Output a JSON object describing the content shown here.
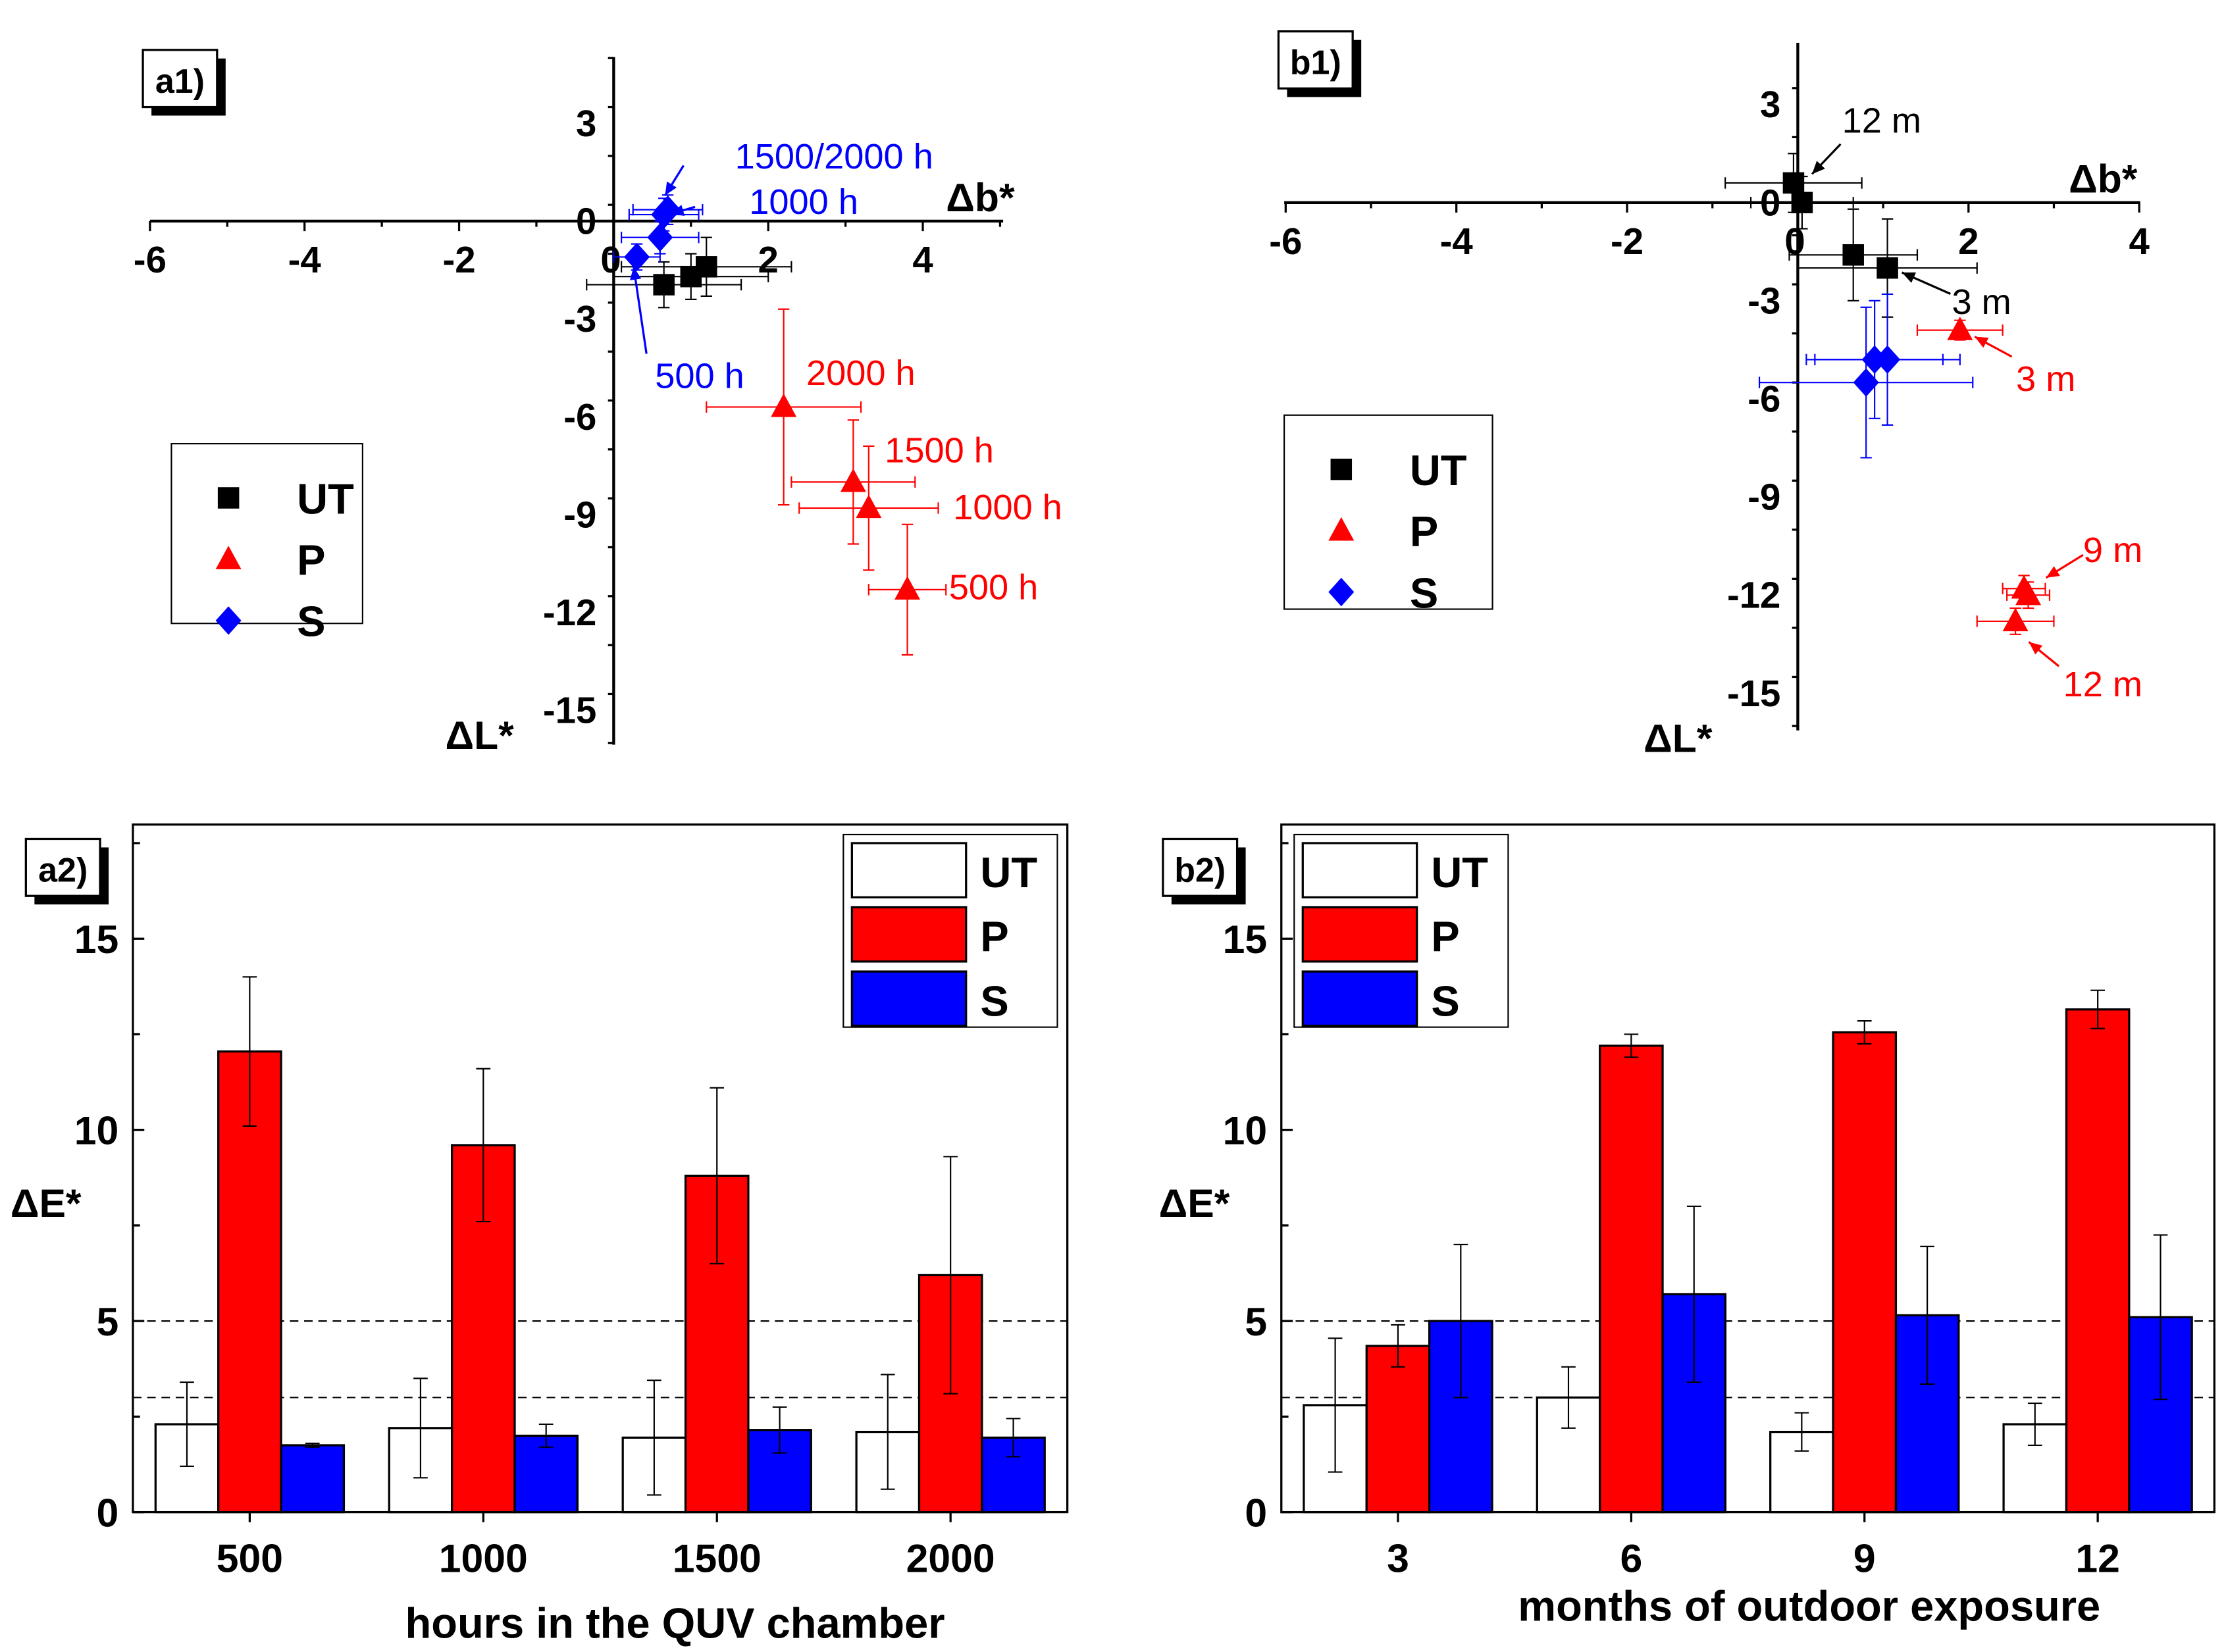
{
  "colors": {
    "UT": "#000000",
    "P": "#ff0000",
    "S": "#0000ff",
    "UT_bar_fill": "#ffffff"
  },
  "chart_data": [
    {
      "panel": "a1)",
      "type": "scatter",
      "xlabel": "Δb*",
      "ylabel": "ΔL*",
      "xlim": [
        -6,
        5
      ],
      "ylim": [
        -16,
        5
      ],
      "xticks": [
        -6,
        -4,
        -2,
        0,
        2,
        4
      ],
      "yticks": [
        3,
        0,
        -3,
        -6,
        -9,
        -12,
        -15
      ],
      "legend": [
        "UT",
        "P",
        "S"
      ],
      "legend_position": "left-middle",
      "series": [
        {
          "name": "UT",
          "marker": "square",
          "points": [
            {
              "x": 0.65,
              "y": -1.95,
              "xerr": 1.0,
              "yerr": 0.7
            },
            {
              "x": 1.0,
              "y": -1.7,
              "xerr": 1.0,
              "yerr": 0.7
            },
            {
              "x": 1.2,
              "y": -1.4,
              "xerr": 1.1,
              "yerr": 0.9
            }
          ]
        },
        {
          "name": "P",
          "marker": "triangle",
          "points": [
            {
              "x": 3.8,
              "y": -11.3,
              "xerr": 0.5,
              "yerr": 2.0
            },
            {
              "x": 3.3,
              "y": -8.8,
              "xerr": 0.9,
              "yerr": 1.9
            },
            {
              "x": 3.1,
              "y": -8.0,
              "xerr": 0.8,
              "yerr": 1.9
            },
            {
              "x": 2.2,
              "y": -5.7,
              "xerr": 1.0,
              "yerr": 3.0
            }
          ]
        },
        {
          "name": "S",
          "marker": "diamond",
          "points": [
            {
              "x": 0.3,
              "y": -1.1,
              "xerr": 0.3,
              "yerr": 0.4
            },
            {
              "x": 0.6,
              "y": -0.5,
              "xerr": 0.5,
              "yerr": 0.5
            },
            {
              "x": 0.65,
              "y": 0.2,
              "xerr": 0.45,
              "yerr": 0.5
            },
            {
              "x": 0.7,
              "y": 0.35,
              "xerr": 0.45,
              "yerr": 0.45
            }
          ]
        }
      ],
      "annotations": [
        {
          "text": "1500/2000 h",
          "color": "S"
        },
        {
          "text": "1000 h",
          "color": "S"
        },
        {
          "text": "500 h",
          "color": "S"
        },
        {
          "text": "2000 h",
          "color": "P"
        },
        {
          "text": "1500 h",
          "color": "P"
        },
        {
          "text": "1000 h",
          "color": "P"
        },
        {
          "text": "500 h",
          "color": "P"
        }
      ]
    },
    {
      "panel": "b1)",
      "type": "scatter",
      "xlabel": "Δb*",
      "ylabel": "ΔL*",
      "xlim": [
        -6,
        4
      ],
      "ylim": [
        -16,
        4
      ],
      "xticks": [
        -6,
        -4,
        -2,
        0,
        2,
        4
      ],
      "yticks": [
        3,
        0,
        -3,
        -6,
        -9,
        -12,
        -15
      ],
      "legend": [
        "UT",
        "P",
        "S"
      ],
      "legend_position": "left-middle",
      "series": [
        {
          "name": "UT",
          "marker": "square",
          "points": [
            {
              "x": -0.05,
              "y": 0.6,
              "xerr": 0.8,
              "yerr": 0.9
            },
            {
              "x": 0.05,
              "y": 0.0,
              "xerr": 0.6,
              "yerr": 0.8
            },
            {
              "x": 0.65,
              "y": -1.6,
              "xerr": 0.75,
              "yerr": 1.4
            },
            {
              "x": 1.05,
              "y": -2.0,
              "xerr": 1.05,
              "yerr": 1.5
            }
          ]
        },
        {
          "name": "P",
          "marker": "triangle",
          "points": [
            {
              "x": 1.9,
              "y": -3.9,
              "xerr": 0.5,
              "yerr": 0.3
            },
            {
              "x": 2.7,
              "y": -12.0,
              "xerr": 0.25,
              "yerr": 0.4
            },
            {
              "x": 2.65,
              "y": -11.8,
              "xerr": 0.25,
              "yerr": 0.4
            },
            {
              "x": 2.55,
              "y": -12.8,
              "xerr": 0.45,
              "yerr": 0.4
            }
          ]
        },
        {
          "name": "S",
          "marker": "diamond",
          "points": [
            {
              "x": 0.9,
              "y": -4.8,
              "xerr": 0.8,
              "yerr": 1.8
            },
            {
              "x": 1.05,
              "y": -4.8,
              "xerr": 0.85,
              "yerr": 2.0
            },
            {
              "x": 0.8,
              "y": -5.5,
              "xerr": 1.25,
              "yerr": 2.3
            }
          ]
        }
      ],
      "annotations": [
        {
          "text": "12 m",
          "color": "UT"
        },
        {
          "text": "3 m",
          "color": "UT"
        },
        {
          "text": "3 m",
          "color": "P"
        },
        {
          "text": "9 m",
          "color": "P"
        },
        {
          "text": "12 m",
          "color": "P"
        }
      ]
    },
    {
      "panel": "a2)",
      "type": "bar",
      "xlabel": "hours in the QUV chamber",
      "ylabel": "ΔE*",
      "ylim": [
        0,
        18
      ],
      "yticks": [
        0,
        5,
        10,
        15
      ],
      "reference_lines": [
        3,
        5
      ],
      "categories": [
        "500",
        "1000",
        "1500",
        "2000"
      ],
      "series": [
        {
          "name": "UT",
          "values": [
            2.3,
            2.2,
            1.95,
            2.1
          ],
          "errors": [
            1.1,
            1.3,
            1.5,
            1.5
          ]
        },
        {
          "name": "P",
          "values": [
            12.05,
            9.6,
            8.8,
            6.2
          ],
          "errors": [
            1.95,
            2.0,
            2.3,
            3.1
          ]
        },
        {
          "name": "S",
          "values": [
            1.75,
            2.0,
            2.15,
            1.95
          ],
          "errors": [
            0.05,
            0.3,
            0.6,
            0.5
          ]
        }
      ],
      "legend": [
        "UT",
        "P",
        "S"
      ],
      "legend_position": "top-right"
    },
    {
      "panel": "b2)",
      "type": "bar",
      "xlabel": "months of outdoor exposure",
      "ylabel": "ΔE*",
      "ylim": [
        0,
        18
      ],
      "yticks": [
        0,
        5,
        10,
        15
      ],
      "reference_lines": [
        3,
        5
      ],
      "categories": [
        "3",
        "6",
        "9",
        "12"
      ],
      "series": [
        {
          "name": "UT",
          "values": [
            2.8,
            3.0,
            2.1,
            2.3
          ],
          "errors": [
            1.75,
            0.8,
            0.5,
            0.55
          ]
        },
        {
          "name": "P",
          "values": [
            4.35,
            12.2,
            12.55,
            13.15
          ],
          "errors": [
            0.55,
            0.3,
            0.3,
            0.5
          ]
        },
        {
          "name": "S",
          "values": [
            5.0,
            5.7,
            5.15,
            5.1
          ],
          "errors": [
            2.0,
            2.3,
            1.8,
            2.15
          ]
        }
      ],
      "legend": [
        "UT",
        "P",
        "S"
      ],
      "legend_position": "top-left"
    }
  ]
}
